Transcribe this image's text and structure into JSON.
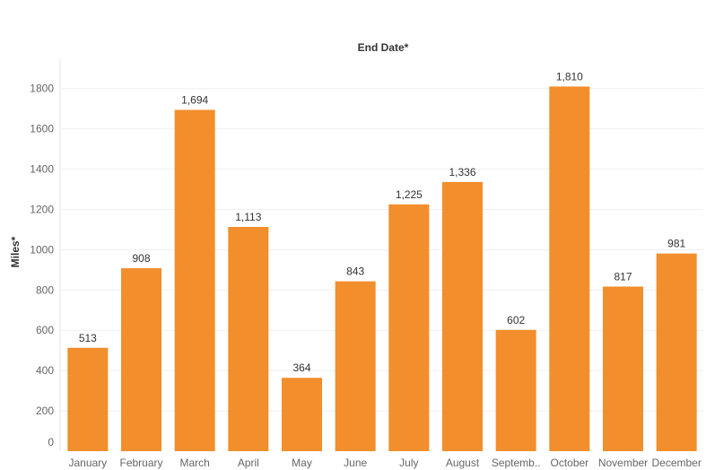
{
  "chart_data": {
    "type": "bar",
    "title": "End Date*",
    "xlabel": "",
    "ylabel": "Miles*",
    "categories": [
      "January",
      "February",
      "March",
      "April",
      "May",
      "June",
      "July",
      "August",
      "Septemb..",
      "October",
      "November",
      "December"
    ],
    "values": [
      513,
      908,
      1694,
      1113,
      364,
      843,
      1225,
      1336,
      602,
      1810,
      817,
      981
    ],
    "value_labels": [
      "513",
      "908",
      "1,694",
      "1,113",
      "364",
      "843",
      "1,225",
      "1,336",
      "602",
      "1,810",
      "817",
      "981"
    ],
    "yticks": [
      0,
      200,
      400,
      600,
      800,
      1000,
      1200,
      1400,
      1600,
      1800
    ],
    "ylim": [
      0,
      1950
    ],
    "grid": true,
    "legend": "none",
    "bar_color": "#f28e2b"
  }
}
